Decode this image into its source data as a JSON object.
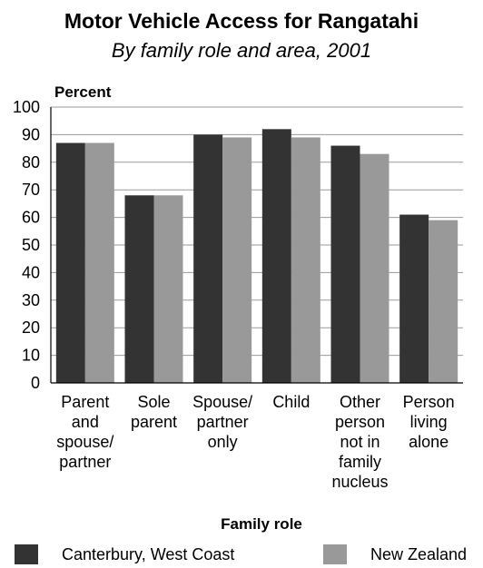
{
  "chart_data": {
    "type": "bar",
    "title": "Motor Vehicle Access for Rangatahi",
    "subtitle": "By family role and area, 2001",
    "ylabel": "Percent",
    "xlabel": "Family role",
    "ylim": [
      0,
      100
    ],
    "yticks": [
      0,
      10,
      20,
      30,
      40,
      50,
      60,
      70,
      80,
      90,
      100
    ],
    "grid": true,
    "legend_position": "bottom",
    "categories": [
      [
        "Parent",
        "and",
        "spouse/",
        "partner"
      ],
      [
        "Sole",
        "parent"
      ],
      [
        "Spouse/",
        "partner",
        "only"
      ],
      [
        "Child"
      ],
      [
        "Other",
        "person",
        "not in",
        "family",
        "nucleus"
      ],
      [
        "Person",
        "living",
        "alone"
      ]
    ],
    "series": [
      {
        "name": "Canterbury, West Coast",
        "color": "#333333",
        "values": [
          87,
          68,
          90,
          92,
          86,
          61
        ]
      },
      {
        "name": "New Zealand",
        "color": "#999999",
        "values": [
          87,
          68,
          89,
          89,
          83,
          59
        ]
      }
    ]
  }
}
